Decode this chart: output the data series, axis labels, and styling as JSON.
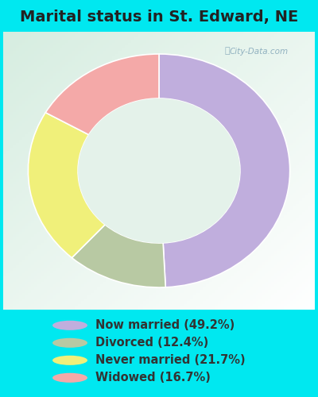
{
  "title": "Marital status in St. Edward, NE",
  "slices": [
    49.2,
    12.4,
    21.7,
    16.7
  ],
  "labels": [
    "Now married (49.2%)",
    "Divorced (12.4%)",
    "Never married (21.7%)",
    "Widowed (16.7%)"
  ],
  "colors": [
    "#c0aedd",
    "#b8c9a3",
    "#f0f07a",
    "#f4a9a8"
  ],
  "bg_cyan": "#00e8f0",
  "bg_chart_tl": "#d6eee0",
  "bg_chart_br": "#f0f8f0",
  "watermark": "City-Data.com",
  "legend_fontsize": 10.5,
  "title_fontsize": 14,
  "title_color": "#222222",
  "legend_color": "#333333"
}
